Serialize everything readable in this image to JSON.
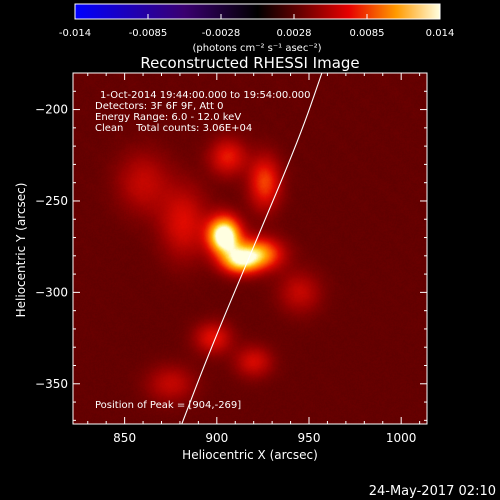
{
  "colorbar": {
    "ticks": [
      "-0.014",
      "-0.0085",
      "-0.0028",
      "0.0028",
      "0.0085",
      "0.014"
    ],
    "unit_label": "(photons cm⁻² s⁻¹ asec⁻²)",
    "range": [
      -0.014,
      0.014
    ],
    "colors": {
      "negative_min": "#0000ff",
      "negative_max": "#3a0070",
      "zero": "#000000",
      "positive_low": "#5a0000",
      "positive_mid": "#e60000",
      "positive_high": "#ff9a00",
      "positive_max": "#ffffe0"
    }
  },
  "chart_data": {
    "type": "heatmap",
    "title": "Reconstructed RHESSI Image",
    "xlabel": "Heliocentric X (arcsec)",
    "ylabel": "Heliocentric Y (arcsec)",
    "xlim": [
      822,
      1014
    ],
    "ylim": [
      -372,
      -180
    ],
    "x_ticks": [
      850,
      900,
      950,
      1000
    ],
    "y_ticks": [
      -200,
      -250,
      -300,
      -350
    ],
    "x_tick_labels": [
      "850",
      "900",
      "950",
      "1000"
    ],
    "y_tick_labels": [
      "−200",
      "−250",
      "−300",
      "−350"
    ],
    "annotations": [
      "1-Oct-2014 19:44:00.000 to 19:54:00.000",
      "Detectors: 3F 6F 9F, Att 0",
      "Energy Range: 6.0 - 12.0 keV",
      "Clean    Total counts: 3.06E+04",
      "Position of Peak = [904,-269]"
    ],
    "peak": {
      "x": 904,
      "y": -269
    },
    "sources": [
      {
        "x": 904,
        "y": -269,
        "sx": 6,
        "sy": 7,
        "amp": 1.0
      },
      {
        "x": 922,
        "y": -279,
        "sx": 9,
        "sy": 6,
        "amp": 0.62
      },
      {
        "x": 912,
        "y": -283,
        "sx": 7,
        "sy": 5,
        "amp": 0.55
      },
      {
        "x": 926,
        "y": -240,
        "sx": 6,
        "sy": 10,
        "amp": 0.38
      },
      {
        "x": 906,
        "y": -226,
        "sx": 7,
        "sy": 7,
        "amp": 0.3
      },
      {
        "x": 882,
        "y": -262,
        "sx": 9,
        "sy": 14,
        "amp": 0.26
      },
      {
        "x": 860,
        "y": -240,
        "sx": 10,
        "sy": 12,
        "amp": 0.2
      },
      {
        "x": 898,
        "y": -325,
        "sx": 7,
        "sy": 6,
        "amp": 0.28
      },
      {
        "x": 920,
        "y": -338,
        "sx": 7,
        "sy": 6,
        "amp": 0.24
      },
      {
        "x": 875,
        "y": -350,
        "sx": 9,
        "sy": 7,
        "amp": 0.2
      },
      {
        "x": 945,
        "y": -300,
        "sx": 8,
        "sy": 8,
        "amp": 0.2
      }
    ],
    "limb": [
      [
        881,
        -372
      ],
      [
        897,
        -330
      ],
      [
        920,
        -275
      ],
      [
        945,
        -215
      ],
      [
        957,
        -180
      ]
    ]
  },
  "footer": {
    "timestamp": "24-May-2017 02:10"
  }
}
